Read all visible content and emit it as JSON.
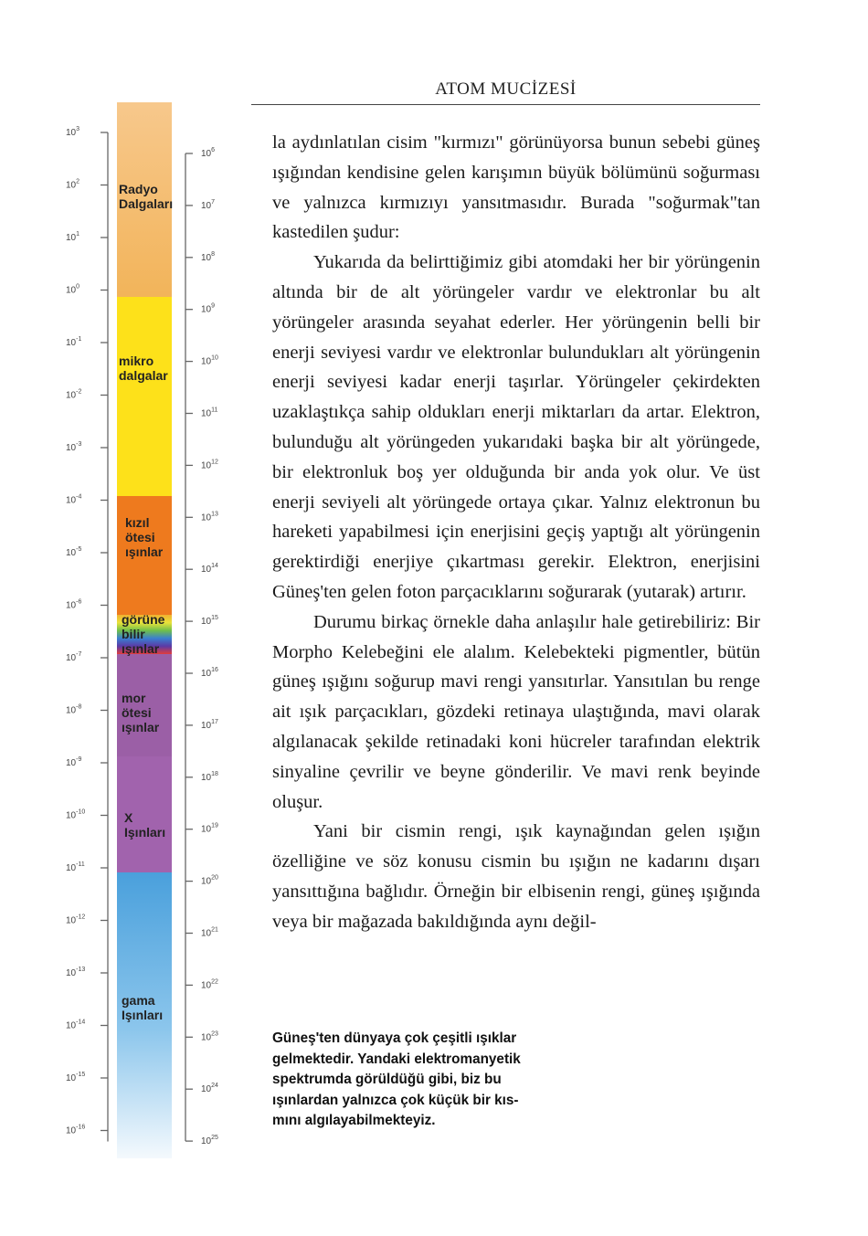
{
  "header": {
    "title": "ATOM MUCİZESİ"
  },
  "spectrum": {
    "left_scale": [
      {
        "base": "10",
        "exp": "3"
      },
      {
        "base": "10",
        "exp": "2"
      },
      {
        "base": "10",
        "exp": "1"
      },
      {
        "base": "10",
        "exp": "0"
      },
      {
        "base": "10",
        "exp": "-1"
      },
      {
        "base": "10",
        "exp": "-2"
      },
      {
        "base": "10",
        "exp": "-3"
      },
      {
        "base": "10",
        "exp": "-4"
      },
      {
        "base": "10",
        "exp": "-5"
      },
      {
        "base": "10",
        "exp": "-6"
      },
      {
        "base": "10",
        "exp": "-7"
      },
      {
        "base": "10",
        "exp": "-8"
      },
      {
        "base": "10",
        "exp": "-9"
      },
      {
        "base": "10",
        "exp": "-10"
      },
      {
        "base": "10",
        "exp": "-11"
      },
      {
        "base": "10",
        "exp": "-12"
      },
      {
        "base": "10",
        "exp": "-13"
      },
      {
        "base": "10",
        "exp": "-14"
      },
      {
        "base": "10",
        "exp": "-15"
      },
      {
        "base": "10",
        "exp": "-16"
      }
    ],
    "right_scale": [
      {
        "base": "10",
        "exp": "6"
      },
      {
        "base": "10",
        "exp": "7"
      },
      {
        "base": "10",
        "exp": "8"
      },
      {
        "base": "10",
        "exp": "9"
      },
      {
        "base": "10",
        "exp": "10"
      },
      {
        "base": "10",
        "exp": "11"
      },
      {
        "base": "10",
        "exp": "12"
      },
      {
        "base": "10",
        "exp": "13"
      },
      {
        "base": "10",
        "exp": "14"
      },
      {
        "base": "10",
        "exp": "15"
      },
      {
        "base": "10",
        "exp": "16"
      },
      {
        "base": "10",
        "exp": "17"
      },
      {
        "base": "10",
        "exp": "18"
      },
      {
        "base": "10",
        "exp": "19"
      },
      {
        "base": "10",
        "exp": "20"
      },
      {
        "base": "10",
        "exp": "21"
      },
      {
        "base": "10",
        "exp": "22"
      },
      {
        "base": "10",
        "exp": "23"
      },
      {
        "base": "10",
        "exp": "24"
      },
      {
        "base": "10",
        "exp": "25"
      }
    ],
    "bands": [
      {
        "lines": [
          "Radyo",
          "Dalgaları"
        ],
        "color_top": "#f7c88c",
        "color_bottom": "#f2b45a"
      },
      {
        "lines": [
          "mikro",
          "dalgalar"
        ],
        "color_top": "#fde11a",
        "color_bottom": "#fde11a"
      },
      {
        "lines": [
          "kızıl",
          "ötesi",
          "ışınlar"
        ],
        "color_top": "#ee7a1e",
        "color_bottom": "#ee7a1e"
      },
      {
        "lines": [
          "görüne",
          "bilir",
          "ışınlar"
        ],
        "color_top": "#f0b030",
        "color_bottom": "#e23c3c"
      },
      {
        "lines": [
          "mor",
          "ötesi",
          "ışınlar"
        ],
        "color_top": "#9b5fa6",
        "color_bottom": "#9b5fa6"
      },
      {
        "lines": [
          "X",
          "Işınları"
        ],
        "color_top": "#a163ad",
        "color_bottom": "#a163ad"
      },
      {
        "lines": [
          "gama",
          "Işınları"
        ],
        "color_top": "#4aa0dc",
        "color_bottom": "#eef6fc"
      }
    ]
  },
  "body": {
    "paragraphs": [
      "la aydınlatılan cisim \"kırmızı\" görünüyorsa bunun sebebi güneş ışığından kendisine gelen karışımın büyük bölümünü soğurması ve yalnızca kırmızıyı yansıtmasıdır. Burada \"soğurmak\"tan kastedilen şudur:",
      "Yukarıda da belirttiğimiz gibi atomdaki her bir yörüngenin altında bir de alt yörüngeler vardır ve elektronlar bu alt yörüngeler arasında seyahat ederler. Her yörüngenin belli bir enerji seviyesi vardır ve elektronlar bulundukları alt yörüngenin enerji seviyesi kadar enerji taşırlar. Yörüngeler çekirdekten uzaklaştıkça sahip oldukları enerji miktarları da artar. Elektron, bulunduğu alt yörüngeden yukarıdaki başka bir alt yörüngede, bir elektronluk boş yer olduğunda bir anda yok olur. Ve üst enerji seviyeli alt yörüngede ortaya çıkar. Yalnız elektronun bu hareketi yapabilmesi için enerjisini geçiş yaptığı alt yörüngenin gerektirdiği enerjiye çıkartması gerekir. Elektron, enerjisini Güneş'ten gelen foton parçacıklarını soğurarak (yutarak) artırır.",
      "Durumu birkaç örnekle daha anlaşılır hale getirebiliriz: Bir Morpho Kelebeğini ele alalım. Kelebekteki pigmentler, bütün güneş ışığını soğurup mavi rengi yansıtırlar. Yansıtılan bu renge ait ışık parçacıkları, gözdeki retinaya ulaştığında, mavi olarak algılanacak şekilde retinadaki koni hücreler tarafından elektrik sinyaline çevrilir ve beyne gönderilir. Ve mavi renk beyinde oluşur.",
      "Yani bir cismin rengi, ışık kaynağından gelen ışığın özelliğine ve söz konusu cismin bu ışığın ne kadarını dışarı yansıttığına bağlıdır. Örneğin bir elbisenin rengi, güneş ışığında veya bir mağazada bakıldığında aynı değil-"
    ]
  },
  "caption": {
    "lines": [
      "Güneş'ten dünyaya çok çeşitli ışıklar",
      "gelmektedir. Yandaki elektromanyetik",
      "spektrumda görüldüğü gibi, biz bu",
      "ışınlardan yalnızca çok küçük bir kıs-",
      "mını algılayabilmekteyiz."
    ]
  }
}
